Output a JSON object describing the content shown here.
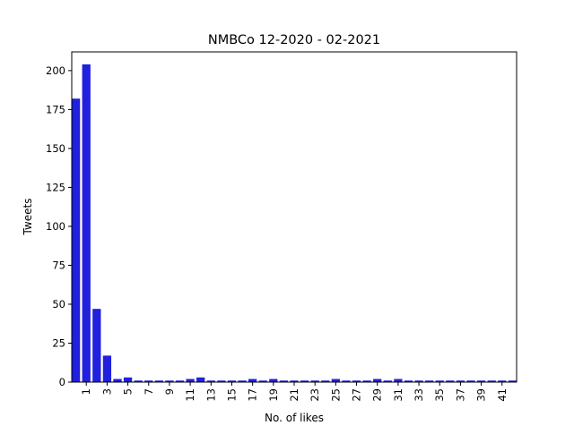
{
  "chart_data": {
    "type": "bar",
    "title": "NMBCo 12-2020 - 02-2021",
    "xlabel": "No. of likes",
    "ylabel": "Tweets",
    "ylim": [
      0,
      212
    ],
    "yticks": [
      0,
      25,
      50,
      75,
      100,
      125,
      150,
      175,
      200
    ],
    "categories": [
      0,
      1,
      2,
      3,
      4,
      5,
      6,
      7,
      8,
      9,
      10,
      11,
      12,
      13,
      14,
      15,
      16,
      17,
      18,
      19,
      20,
      21,
      22,
      23,
      24,
      25,
      26,
      27,
      28,
      29,
      30,
      31,
      32,
      33,
      34,
      35,
      36,
      37,
      38,
      39,
      40,
      41,
      42
    ],
    "xtick_labels": [
      "1",
      "3",
      "5",
      "7",
      "9",
      "11",
      "13",
      "15",
      "17",
      "19",
      "21",
      "23",
      "25",
      "27",
      "29",
      "31",
      "33",
      "35",
      "37",
      "39",
      "41"
    ],
    "values": [
      182,
      204,
      47,
      17,
      2,
      3,
      1,
      1,
      1,
      1,
      1,
      2,
      3,
      1,
      1,
      1,
      1,
      2,
      1,
      2,
      1,
      1,
      1,
      1,
      1,
      2,
      1,
      1,
      1,
      2,
      1,
      2,
      1,
      1,
      1,
      1,
      1,
      1,
      1,
      1,
      1,
      1,
      1
    ],
    "bar_color": "#2020dd",
    "grid": false,
    "legend": "none"
  }
}
